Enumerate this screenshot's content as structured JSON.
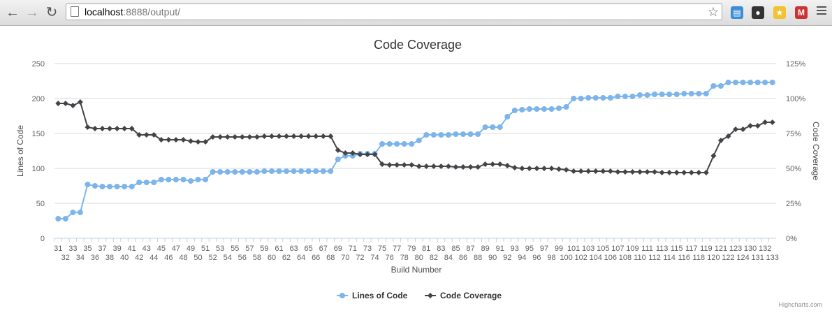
{
  "browser": {
    "url_host": "localhost",
    "url_path": ":8888/output/",
    "back_icon": "back-arrow-icon",
    "forward_icon": "forward-arrow-icon",
    "reload_icon": "reload-icon",
    "bookmark_icon": "star-icon"
  },
  "chart_data": {
    "type": "line",
    "title": "Code Coverage",
    "xlabel": "Build Number",
    "ylabel_left": "Lines of Code",
    "ylabel_right": "Code Coverage",
    "credits": "Highcharts.com",
    "categories": [
      31,
      32,
      33,
      34,
      35,
      36,
      37,
      38,
      39,
      40,
      41,
      42,
      43,
      44,
      45,
      46,
      47,
      48,
      49,
      50,
      51,
      52,
      53,
      54,
      55,
      56,
      57,
      58,
      59,
      60,
      61,
      62,
      63,
      64,
      65,
      66,
      67,
      68,
      69,
      70,
      71,
      72,
      73,
      74,
      75,
      76,
      77,
      78,
      79,
      80,
      81,
      82,
      83,
      84,
      85,
      86,
      87,
      88,
      89,
      90,
      91,
      92,
      93,
      94,
      95,
      96,
      97,
      98,
      99,
      100,
      101,
      102,
      103,
      104,
      105,
      106,
      107,
      108,
      109,
      110,
      111,
      112,
      113,
      114,
      115,
      116,
      117,
      118,
      119,
      120,
      121,
      122,
      123,
      124,
      130,
      131,
      132,
      133
    ],
    "ylim_left": [
      0,
      250
    ],
    "yticks_left": [
      "0",
      "50",
      "100",
      "150",
      "200",
      "250"
    ],
    "ylim_right": [
      0,
      125
    ],
    "yticks_right": [
      "0%",
      "25%",
      "50%",
      "75%",
      "100%",
      "125%"
    ],
    "legend_placement": "bottom-center",
    "grid": true,
    "series": [
      {
        "name": "Lines of Code",
        "axis": "left",
        "color": "#7cb5ec",
        "marker": "circle",
        "values": [
          28,
          28,
          37,
          37,
          77,
          75,
          74,
          74,
          74,
          74,
          74,
          80,
          80,
          80,
          84,
          84,
          84,
          84,
          82,
          84,
          84,
          95,
          95,
          95,
          95,
          95,
          95,
          95,
          96,
          96,
          96,
          96,
          96,
          96,
          96,
          96,
          96,
          96,
          113,
          118,
          118,
          121,
          121,
          121,
          135,
          135,
          135,
          135,
          135,
          140,
          148,
          148,
          148,
          148,
          149,
          149,
          149,
          149,
          159,
          159,
          159,
          174,
          183,
          184,
          185,
          185,
          185,
          185,
          186,
          188,
          200,
          200,
          201,
          201,
          201,
          201,
          203,
          203,
          203,
          205,
          205,
          206,
          206,
          206,
          206,
          207,
          207,
          207,
          207,
          218,
          218,
          223,
          223,
          223,
          223,
          223,
          223,
          223
        ]
      },
      {
        "name": "Code Coverage",
        "axis": "right",
        "color": "#434348",
        "marker": "diamond",
        "values": [
          96.5,
          96.5,
          95,
          97.5,
          79.5,
          78.5,
          78.5,
          78.5,
          78.5,
          78.5,
          78.5,
          74,
          74,
          74,
          70.5,
          70.5,
          70.5,
          70.5,
          69.5,
          69,
          69,
          72.5,
          72.5,
          72.5,
          72.5,
          72.5,
          72.5,
          72.5,
          73,
          73,
          73,
          73,
          73,
          73,
          73,
          73,
          73,
          73,
          63,
          61,
          61,
          60,
          60,
          60,
          53,
          52.5,
          52.5,
          52.5,
          52.5,
          51.5,
          51.5,
          51.5,
          51.5,
          51.5,
          51,
          51,
          51,
          51,
          53,
          53,
          53,
          52,
          50.5,
          50,
          50,
          50,
          50,
          50,
          49.5,
          49,
          48,
          48,
          48,
          48,
          48,
          48,
          47.5,
          47.5,
          47.5,
          47.5,
          47.5,
          47.5,
          47,
          47,
          47,
          47,
          47,
          47,
          47,
          59,
          70,
          73,
          78,
          78,
          80.5,
          80.5,
          83,
          83
        ]
      }
    ]
  }
}
